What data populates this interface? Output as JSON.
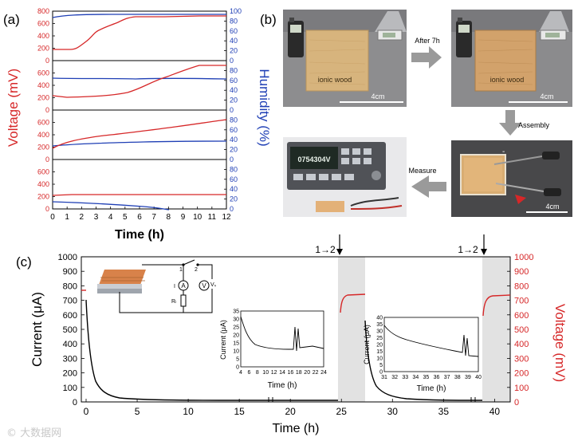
{
  "panel_a": {
    "label": "(a)",
    "y_left_label": "Voltage (mV)",
    "y_right_label": "Humidity (%)",
    "x_label": "Time (h)",
    "x_ticks": [
      "0",
      "1",
      "2",
      "3",
      "4",
      "5",
      "6",
      "7",
      "8",
      "9",
      "10",
      "11",
      "12"
    ],
    "left_ticks": [
      "0",
      "200",
      "400",
      "600",
      "800"
    ],
    "right_ticks": [
      "0",
      "20",
      "40",
      "60",
      "80",
      "100"
    ],
    "colors": {
      "voltage": "#d62728",
      "humidity": "#1f3fb5"
    }
  },
  "panel_b": {
    "label": "(b)",
    "arrow_after": "After 7h",
    "arrow_assembly": "Assembly",
    "arrow_measure": "Measure",
    "wood_label_1": "ionic wood",
    "wood_label_2": "ionic wood",
    "scale_1": "4cm",
    "scale_2": "4cm",
    "scale_3": "4cm",
    "meter_reading": "0754304V"
  },
  "panel_c": {
    "label": "(c)",
    "y_left_label": "Current (μA)",
    "y_right_label": "Voltage (mV)",
    "x_label": "Time (h)",
    "left_ticks": [
      "0",
      "100",
      "200",
      "300",
      "400",
      "500",
      "600",
      "700",
      "800",
      "900",
      "1000"
    ],
    "right_ticks": [
      "0",
      "100",
      "200",
      "300",
      "400",
      "500",
      "600",
      "700",
      "800",
      "900",
      "1000"
    ],
    "x_ticks": [
      "0",
      "5",
      "10",
      "15",
      "20",
      "25",
      "30",
      "35",
      "40"
    ],
    "switch_label_1": "1→2",
    "switch_label_2": "1→2",
    "circuit": {
      "sw1": "1",
      "sw2": "2",
      "ammeter": "A",
      "volt": "V",
      "current": "I",
      "vs": "Vₛ",
      "rl": "Rₗ"
    },
    "inset1": {
      "y_label": "Current (μA)",
      "x_label": "Time (h)",
      "y_ticks": [
        "0",
        "5",
        "10",
        "15",
        "20",
        "25",
        "30",
        "35"
      ],
      "x_ticks": [
        "4",
        "6",
        "8",
        "10",
        "12",
        "14",
        "16",
        "18",
        "20",
        "22",
        "24"
      ]
    },
    "inset2": {
      "y_label": "Current (μA)",
      "x_label": "Time (h)",
      "y_ticks": [
        "0",
        "5",
        "10",
        "15",
        "20",
        "25",
        "30",
        "35",
        "40"
      ],
      "x_ticks": [
        "31",
        "32",
        "33",
        "34",
        "35",
        "36",
        "37",
        "38",
        "39",
        "40"
      ]
    }
  },
  "watermark": "© 大数据网"
}
